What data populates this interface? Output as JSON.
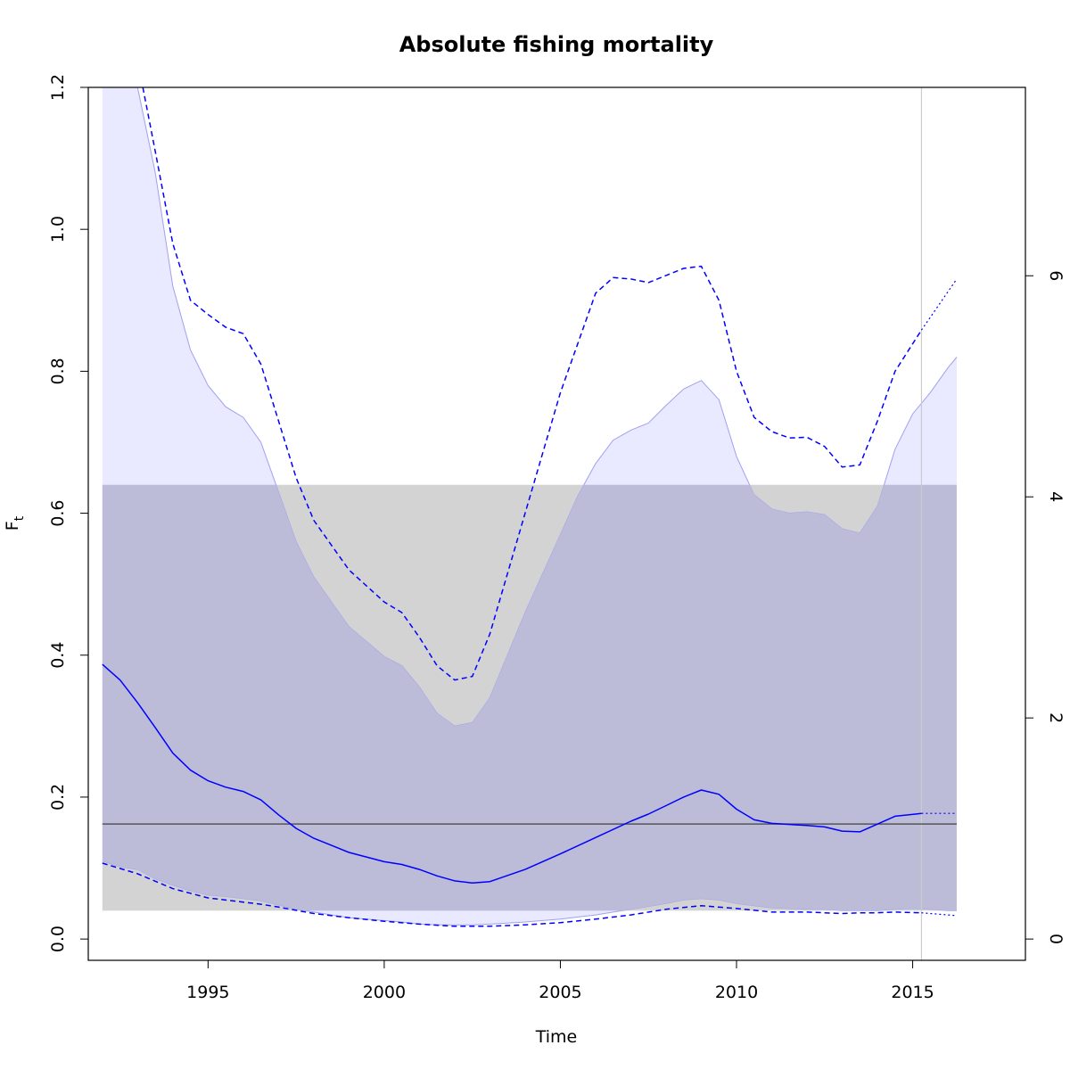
{
  "chart_data": {
    "type": "line",
    "title": "Absolute fishing mortality",
    "xlabel": "Time",
    "ylabel": "F",
    "ylabel_sub": "t",
    "xlim": [
      1991.6,
      2018.2
    ],
    "ylim": [
      -0.03,
      1.2
    ],
    "xticks": [
      1995,
      2000,
      2005,
      2010,
      2015
    ],
    "yticks": [
      0.0,
      0.2,
      0.4,
      0.6,
      0.8,
      1.0,
      1.2
    ],
    "yticks_right": [
      0,
      2,
      4,
      6
    ],
    "right_axis_scale": 6.42,
    "reference_line": 0.162,
    "data_end_x": 2015.25,
    "prior_band": {
      "x": [
        1992.0,
        2016.25
      ],
      "low": 0.04,
      "high": 0.64
    },
    "series": [
      {
        "role": "estimate",
        "x": [
          1992.0,
          1992.5,
          1993.0,
          1993.5,
          1994.0,
          1994.5,
          1995.0,
          1995.5,
          1996.0,
          1996.5,
          1997.0,
          1997.5,
          1998.0,
          1999.0,
          2000.0,
          2000.5,
          2001.0,
          2001.5,
          2002.0,
          2002.5,
          2003.0,
          2004.0,
          2005.0,
          2006.0,
          2007.0,
          2007.5,
          2008.0,
          2008.5,
          2009.0,
          2009.5,
          2010.0,
          2010.5,
          2011.0,
          2012.0,
          2012.5,
          2013.0,
          2013.5,
          2014.0,
          2014.5,
          2015.25
        ],
        "values": [
          0.387,
          0.365,
          0.333,
          0.298,
          0.262,
          0.238,
          0.223,
          0.214,
          0.208,
          0.196,
          0.175,
          0.156,
          0.142,
          0.122,
          0.109,
          0.105,
          0.098,
          0.089,
          0.082,
          0.079,
          0.081,
          0.098,
          0.12,
          0.143,
          0.166,
          0.176,
          0.188,
          0.2,
          0.21,
          0.204,
          0.183,
          0.168,
          0.163,
          0.16,
          0.158,
          0.152,
          0.151,
          0.162,
          0.173,
          0.177
        ]
      },
      {
        "role": "upper-ci",
        "x": [
          1993.15,
          1993.5,
          1994.0,
          1994.5,
          1995.0,
          1995.5,
          1996.0,
          1996.5,
          1997.0,
          1997.5,
          1998.0,
          1999.0,
          2000.0,
          2000.5,
          2001.0,
          2001.5,
          2002.0,
          2002.5,
          2003.0,
          2004.0,
          2005.0,
          2006.0,
          2006.5,
          2007.0,
          2007.5,
          2008.0,
          2008.5,
          2009.0,
          2009.5,
          2010.0,
          2010.5,
          2011.0,
          2011.5,
          2012.0,
          2012.5,
          2013.0,
          2013.5,
          2014.0,
          2014.5,
          2015.25
        ],
        "values": [
          1.2,
          1.11,
          0.98,
          0.9,
          0.88,
          0.862,
          0.853,
          0.81,
          0.73,
          0.65,
          0.59,
          0.52,
          0.475,
          0.46,
          0.425,
          0.385,
          0.365,
          0.37,
          0.43,
          0.6,
          0.77,
          0.91,
          0.932,
          0.93,
          0.925,
          0.935,
          0.945,
          0.948,
          0.9,
          0.8,
          0.735,
          0.715,
          0.706,
          0.707,
          0.694,
          0.665,
          0.668,
          0.73,
          0.8,
          0.858
        ]
      },
      {
        "role": "lower-ci",
        "x": [
          1992.0,
          1993.0,
          1994.0,
          1995.0,
          1996.0,
          1996.5,
          1997.0,
          1998.0,
          1999.0,
          2000.0,
          2001.0,
          2002.0,
          2003.0,
          2004.0,
          2005.0,
          2006.0,
          2007.0,
          2008.0,
          2009.0,
          2010.0,
          2011.0,
          2012.0,
          2013.0,
          2013.5,
          2014.0,
          2014.5,
          2015.25
        ],
        "values": [
          0.107,
          0.092,
          0.071,
          0.058,
          0.052,
          0.049,
          0.045,
          0.036,
          0.03,
          0.025,
          0.021,
          0.018,
          0.018,
          0.02,
          0.023,
          0.028,
          0.034,
          0.042,
          0.047,
          0.043,
          0.038,
          0.038,
          0.036,
          0.037,
          0.037,
          0.038,
          0.037
        ]
      },
      {
        "role": "predicted-estimate",
        "x": [
          2015.25,
          2016.25
        ],
        "values": [
          0.177,
          0.177
        ]
      },
      {
        "role": "predicted-upper-ci",
        "x": [
          2015.25,
          2016.25
        ],
        "values": [
          0.858,
          0.93
        ]
      },
      {
        "role": "predicted-lower-ci",
        "x": [
          2015.25,
          2016.25
        ],
        "values": [
          0.037,
          0.033
        ]
      }
    ],
    "reference_band": {
      "x": [
        1992.0,
        1992.5,
        1993.0,
        1993.5,
        1994.0,
        1994.5,
        1995.0,
        1995.5,
        1996.0,
        1996.5,
        1997.0,
        1997.5,
        1998.0,
        1999.0,
        2000.0,
        2000.5,
        2001.0,
        2001.5,
        2002.0,
        2002.5,
        2003.0,
        2004.0,
        2005.0,
        2005.5,
        2006.0,
        2006.5,
        2007.0,
        2007.5,
        2008.0,
        2008.5,
        2009.0,
        2009.5,
        2010.0,
        2010.5,
        2011.0,
        2011.5,
        2012.0,
        2012.5,
        2013.0,
        2013.5,
        2014.0,
        2014.5,
        2015.0,
        2015.5,
        2016.0,
        2016.25
      ],
      "upper": [
        1.2,
        1.2,
        1.2,
        1.08,
        0.92,
        0.83,
        0.78,
        0.75,
        0.735,
        0.7,
        0.63,
        0.56,
        0.51,
        0.44,
        0.398,
        0.385,
        0.355,
        0.318,
        0.3,
        0.305,
        0.34,
        0.46,
        0.57,
        0.625,
        0.67,
        0.703,
        0.717,
        0.727,
        0.752,
        0.775,
        0.787,
        0.76,
        0.68,
        0.626,
        0.606,
        0.6,
        0.602,
        0.598,
        0.578,
        0.572,
        0.61,
        0.69,
        0.74,
        0.77,
        0.805,
        0.82
      ],
      "lower": [
        0.11,
        0.102,
        0.098,
        0.085,
        0.076,
        0.068,
        0.062,
        0.06,
        0.057,
        0.054,
        0.048,
        0.042,
        0.038,
        0.03,
        0.026,
        0.024,
        0.021,
        0.02,
        0.02,
        0.02,
        0.021,
        0.024,
        0.028,
        0.031,
        0.034,
        0.038,
        0.042,
        0.046,
        0.05,
        0.055,
        0.057,
        0.055,
        0.05,
        0.047,
        0.044,
        0.043,
        0.042,
        0.042,
        0.04,
        0.04,
        0.04,
        0.042,
        0.043,
        0.042,
        0.04,
        0.04
      ]
    },
    "grid": false,
    "legend": "none"
  },
  "colors": {
    "estimate": "#0000ff",
    "reference_band": "#e4e4ff",
    "reference_band_edge": "#a0a0f0",
    "prior_band": "#d3d3d3",
    "prior_overlap": "#bcbcd9",
    "reference_line": "#555555",
    "data_end_line": "#cccccc",
    "axis": "#000000"
  }
}
